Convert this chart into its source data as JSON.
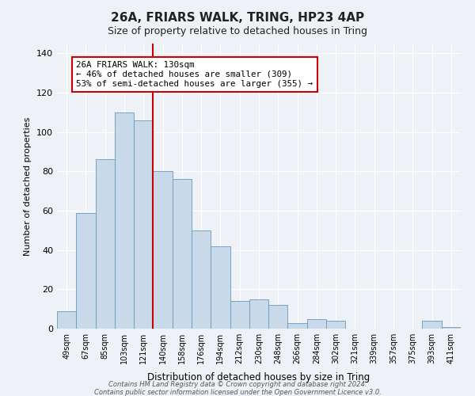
{
  "title": "26A, FRIARS WALK, TRING, HP23 4AP",
  "subtitle": "Size of property relative to detached houses in Tring",
  "xlabel": "Distribution of detached houses by size in Tring",
  "ylabel": "Number of detached properties",
  "bar_labels": [
    "49sqm",
    "67sqm",
    "85sqm",
    "103sqm",
    "121sqm",
    "140sqm",
    "158sqm",
    "176sqm",
    "194sqm",
    "212sqm",
    "230sqm",
    "248sqm",
    "266sqm",
    "284sqm",
    "302sqm",
    "321sqm",
    "339sqm",
    "357sqm",
    "375sqm",
    "393sqm",
    "411sqm"
  ],
  "bar_values": [
    9,
    59,
    86,
    110,
    106,
    80,
    76,
    50,
    42,
    14,
    15,
    12,
    3,
    5,
    4,
    0,
    0,
    0,
    0,
    4,
    1
  ],
  "bar_color": "#c8d9ea",
  "bar_edgecolor": "#6699bb",
  "vline_x": 4.5,
  "vline_color": "#cc0000",
  "annotation_text": "26A FRIARS WALK: 130sqm\n← 46% of detached houses are smaller (309)\n53% of semi-detached houses are larger (355) →",
  "annotation_box_facecolor": "#ffffff",
  "annotation_box_edgecolor": "#cc0000",
  "ylim": [
    0,
    145
  ],
  "yticks": [
    0,
    20,
    40,
    60,
    80,
    100,
    120,
    140
  ],
  "footer_line1": "Contains HM Land Registry data © Crown copyright and database right 2024.",
  "footer_line2": "Contains public sector information licensed under the Open Government Licence v3.0.",
  "bg_color": "#eef2f7"
}
